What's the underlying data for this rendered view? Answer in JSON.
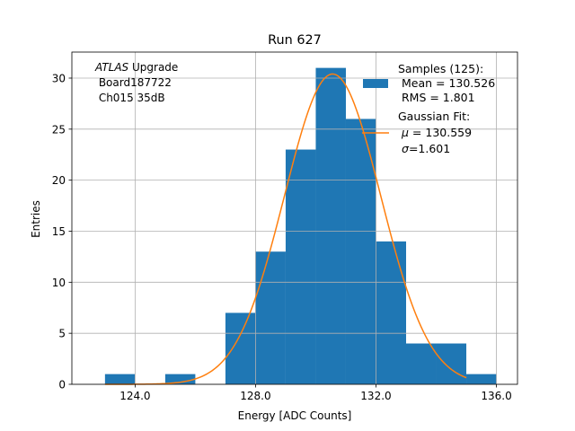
{
  "chart_data": {
    "type": "bar",
    "title": "Run 627",
    "xlabel": "Energy [ADC Counts]",
    "ylabel": "Entries",
    "xlim": [
      121.9,
      136.7
    ],
    "ylim": [
      0,
      32.55
    ],
    "xticks": [
      124.0,
      128.0,
      132.0,
      136.0
    ],
    "xtick_labels": [
      "124.0",
      "128.0",
      "132.0",
      "136.0"
    ],
    "yticks": [
      0,
      5,
      10,
      15,
      20,
      25,
      30
    ],
    "ytick_labels": [
      "0",
      "5",
      "10",
      "15",
      "20",
      "25",
      "30"
    ],
    "grid": true,
    "bin_width": 1.0,
    "bins": [
      {
        "left": 123.0,
        "count": 1
      },
      {
        "left": 124.0,
        "count": 0
      },
      {
        "left": 125.0,
        "count": 1
      },
      {
        "left": 126.0,
        "count": 0
      },
      {
        "left": 127.0,
        "count": 7
      },
      {
        "left": 128.0,
        "count": 13
      },
      {
        "left": 129.0,
        "count": 23
      },
      {
        "left": 130.0,
        "count": 31
      },
      {
        "left": 131.0,
        "count": 26
      },
      {
        "left": 132.0,
        "count": 14
      },
      {
        "left": 133.0,
        "count": 4
      },
      {
        "left": 134.0,
        "count": 4
      },
      {
        "left": 135.0,
        "count": 1
      }
    ],
    "fit": {
      "mu": 130.559,
      "sigma": 1.601,
      "amplitude": 30.4,
      "x_range": [
        123.0,
        135.0
      ]
    },
    "annotation": {
      "italic": "ATLAS",
      "rest": " Upgrade",
      "line2": " Board187722",
      "line3": " Ch015 35dB"
    },
    "legend": {
      "position": "upper right",
      "samples_header": "Samples (125):",
      "mean": " Mean = 130.526",
      "rms": " RMS = 1.801",
      "fit_header": "Gaussian Fit:",
      "mu_symbol": "μ",
      "mu_rest": " = 130.559",
      "sigma_symbol": "σ",
      "sigma_rest": "=1.601"
    },
    "colors": {
      "bars": "#1f77b4",
      "fit": "#ff7f0e",
      "grid": "#b0b0b0"
    }
  }
}
